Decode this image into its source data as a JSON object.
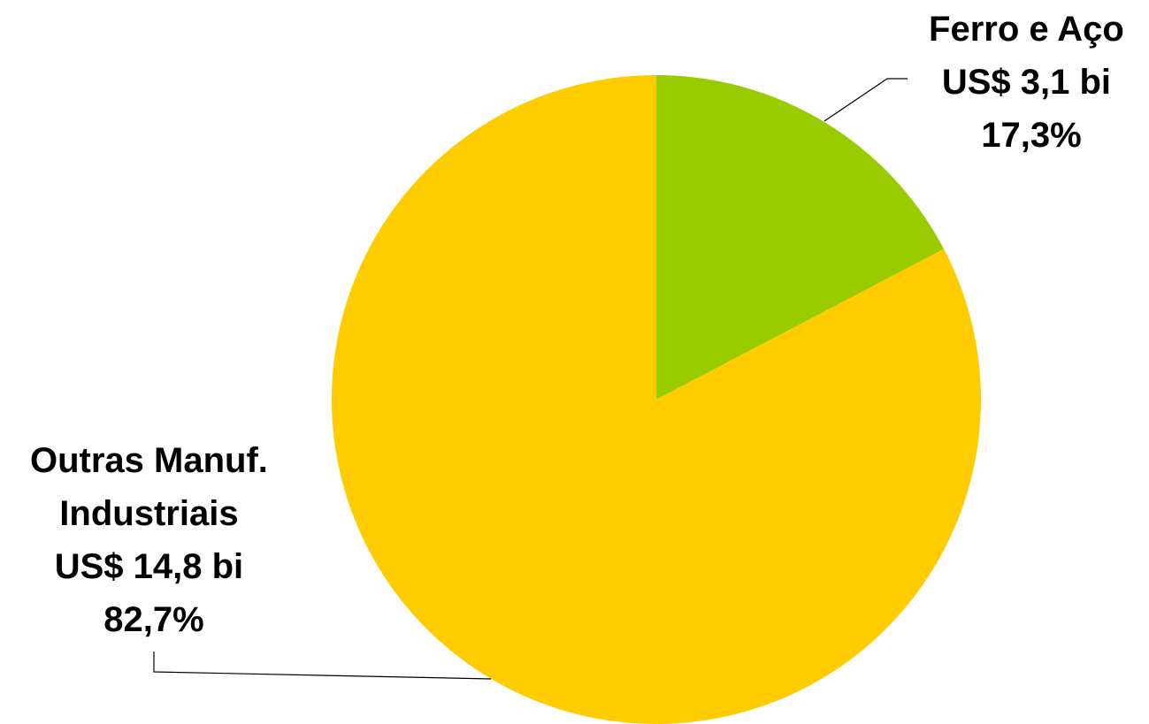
{
  "chart_data": {
    "type": "pie",
    "start_angle_deg": 0,
    "direction": "clockwise",
    "slices": [
      {
        "label": [
          "Ferro e Aço",
          "US$ 3,1 bi",
          "17,3%"
        ],
        "value": 3.1,
        "percent": 17.3,
        "color": "#99cc00"
      },
      {
        "label": [
          "Outras Manuf.",
          "Industriais",
          "US$ 14,8 bi",
          "82,7%"
        ],
        "value": 14.8,
        "percent": 82.7,
        "color": "#ffcc00"
      }
    ]
  }
}
